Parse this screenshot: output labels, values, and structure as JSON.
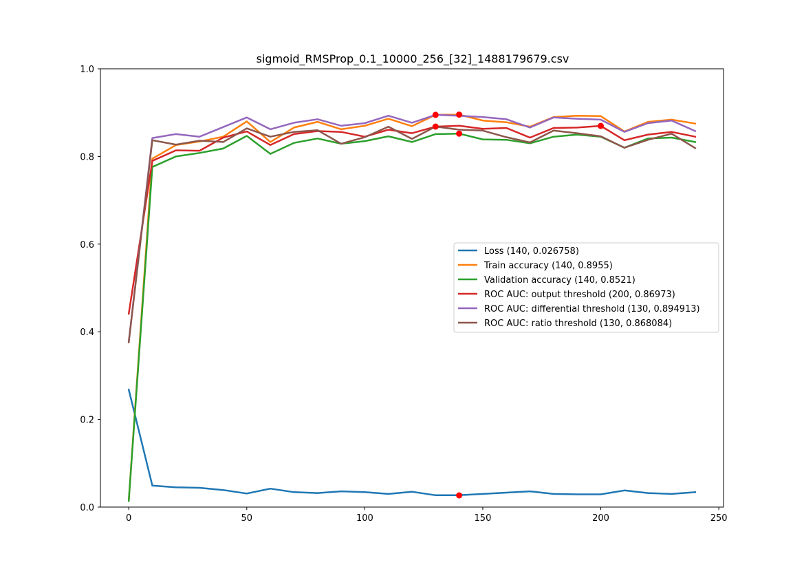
{
  "chart_data": {
    "type": "line",
    "title": "sigmoid_RMSProp_0.1_10000_256_[32]_1488179679.csv",
    "xlabel": "",
    "ylabel": "",
    "xlim": [
      -12,
      252
    ],
    "ylim": [
      0.0,
      1.0
    ],
    "xticks": [
      "0",
      "50",
      "100",
      "150",
      "200",
      "250"
    ],
    "yticks": [
      "0.0",
      "0.2",
      "0.4",
      "0.6",
      "0.8",
      "1.0"
    ],
    "x": [
      0,
      10,
      20,
      30,
      40,
      50,
      60,
      70,
      80,
      90,
      100,
      110,
      120,
      130,
      140,
      150,
      160,
      170,
      180,
      190,
      200,
      210,
      220,
      230,
      240
    ],
    "legend_position": "center-right",
    "grid": false,
    "series": [
      {
        "name": "Loss (140, 0.026758)",
        "color": "#1f77b4",
        "values": [
          0.268,
          0.049,
          0.045,
          0.044,
          0.039,
          0.031,
          0.042,
          0.034,
          0.032,
          0.036,
          0.034,
          0.03,
          0.035,
          0.027,
          0.027,
          0.03,
          0.033,
          0.036,
          0.03,
          0.029,
          0.029,
          0.038,
          0.032,
          0.03,
          0.034
        ],
        "marker": {
          "x": 140,
          "y": 0.026758
        }
      },
      {
        "name": "Train accuracy (140, 0.8955)",
        "color": "#ff7f0e",
        "values": [
          0.015,
          0.795,
          0.826,
          0.834,
          0.845,
          0.88,
          0.833,
          0.866,
          0.879,
          0.862,
          0.87,
          0.886,
          0.869,
          0.895,
          0.8955,
          0.882,
          0.878,
          0.868,
          0.89,
          0.893,
          0.892,
          0.857,
          0.879,
          0.884,
          0.875
        ],
        "marker": {
          "x": 140,
          "y": 0.8955
        }
      },
      {
        "name": "Validation accuracy (140, 0.8521)",
        "color": "#2ca02c",
        "values": [
          0.014,
          0.776,
          0.8,
          0.808,
          0.818,
          0.847,
          0.806,
          0.831,
          0.841,
          0.829,
          0.835,
          0.846,
          0.833,
          0.851,
          0.8521,
          0.839,
          0.838,
          0.83,
          0.845,
          0.85,
          0.845,
          0.82,
          0.841,
          0.843,
          0.833
        ],
        "marker": {
          "x": 140,
          "y": 0.8521
        }
      },
      {
        "name": "ROC AUC: output threshold (200, 0.86973)",
        "color": "#d62728",
        "values": [
          0.441,
          0.79,
          0.814,
          0.813,
          0.843,
          0.857,
          0.826,
          0.851,
          0.858,
          0.856,
          0.845,
          0.861,
          0.853,
          0.868,
          0.87,
          0.863,
          0.865,
          0.843,
          0.865,
          0.866,
          0.86973,
          0.837,
          0.85,
          0.856,
          0.845
        ],
        "marker": {
          "x": 200,
          "y": 0.86973
        }
      },
      {
        "name": "ROC AUC: differential threshold (130, 0.894913)",
        "color": "#9467bd",
        "values": [
          0.377,
          0.842,
          0.851,
          0.845,
          0.867,
          0.889,
          0.862,
          0.877,
          0.885,
          0.87,
          0.876,
          0.893,
          0.877,
          0.894913,
          0.893,
          0.89,
          0.885,
          0.866,
          0.889,
          0.886,
          0.884,
          0.856,
          0.876,
          0.882,
          0.858
        ],
        "marker": {
          "x": 130,
          "y": 0.894913
        }
      },
      {
        "name": "ROC AUC: ratio threshold (130, 0.868084)",
        "color": "#8c564b",
        "values": [
          0.376,
          0.837,
          0.827,
          0.836,
          0.833,
          0.864,
          0.845,
          0.856,
          0.86,
          0.829,
          0.844,
          0.868,
          0.84,
          0.868084,
          0.861,
          0.859,
          0.844,
          0.832,
          0.859,
          0.853,
          0.846,
          0.82,
          0.838,
          0.852,
          0.819
        ],
        "marker": {
          "x": 130,
          "y": 0.868084
        }
      }
    ]
  }
}
